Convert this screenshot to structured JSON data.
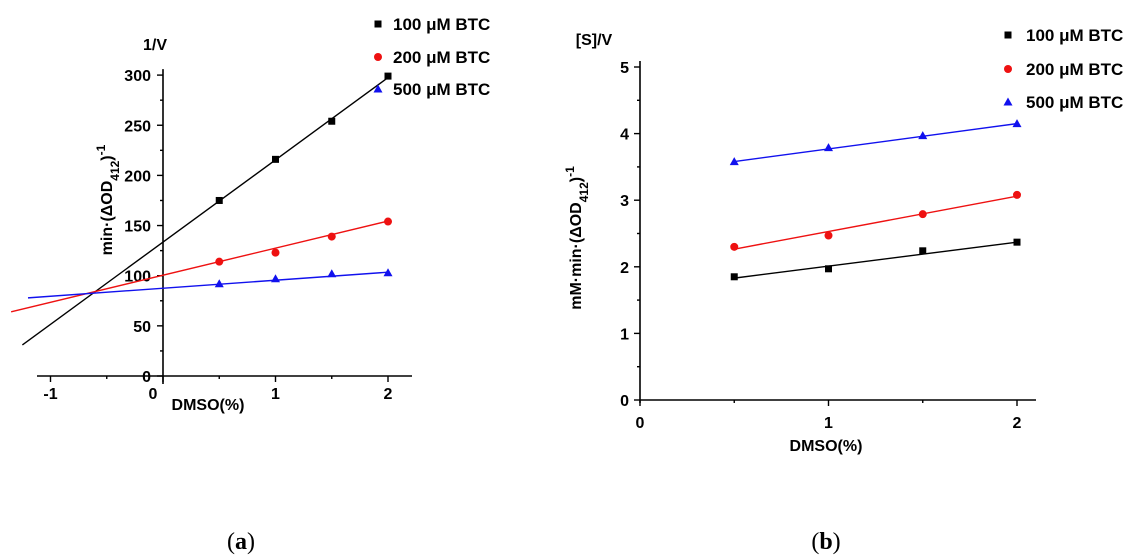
{
  "chart_data": [
    {
      "type": "line",
      "panel_label": "(a)",
      "title_above_y": "1/V",
      "ylabel": "min·(ΔOD412)-1",
      "xlabel": "DMSO(%)",
      "xlim": [
        -1.3,
        2.2
      ],
      "ylim": [
        0,
        300
      ],
      "x_ticks": [
        -1,
        0,
        1,
        2
      ],
      "y_ticks": [
        0,
        50,
        100,
        150,
        200,
        250,
        300
      ],
      "x": [
        0.5,
        1,
        1.5,
        2
      ],
      "series": [
        {
          "name": "100 μM BTC",
          "marker": "square",
          "color": "#000000",
          "values": [
            175,
            216,
            254,
            299
          ],
          "fit": {
            "slope": 82,
            "intercept": 133.5,
            "x_range": [
              -1.25,
              2.0
            ]
          }
        },
        {
          "name": "200 μM BTC",
          "marker": "circle",
          "color": "#ee1111",
          "values": [
            114,
            123,
            139,
            154
          ],
          "fit": {
            "slope": 27,
            "intercept": 100.5,
            "x_range": [
              -1.35,
              2.0
            ]
          }
        },
        {
          "name": "500 μM BTC",
          "marker": "triangle",
          "color": "#1111ee",
          "values": [
            92,
            97,
            102,
            103
          ],
          "fit": {
            "slope": 8,
            "intercept": 87.5,
            "x_range": [
              -1.2,
              2.0
            ]
          }
        }
      ]
    },
    {
      "type": "line",
      "panel_label": "(b)",
      "title_above_y": "[S]/V",
      "ylabel": "mM·min·(ΔOD412)-1",
      "xlabel": "DMSO(%)",
      "xlim": [
        0,
        2.1
      ],
      "ylim": [
        0,
        5
      ],
      "x_ticks": [
        0,
        1,
        2
      ],
      "y_ticks": [
        0,
        1,
        2,
        3,
        4,
        5
      ],
      "x": [
        0.5,
        1,
        1.5,
        2
      ],
      "series": [
        {
          "name": "100 μM BTC",
          "marker": "square",
          "color": "#000000",
          "values": [
            1.85,
            1.97,
            2.24,
            2.37
          ],
          "fit": {
            "slope": 0.36,
            "intercept": 1.65,
            "x_range": [
              0.5,
              2.0
            ]
          }
        },
        {
          "name": "200 μM BTC",
          "marker": "circle",
          "color": "#ee1111",
          "values": [
            2.3,
            2.47,
            2.79,
            3.08
          ],
          "fit": {
            "slope": 0.53,
            "intercept": 2.0,
            "x_range": [
              0.5,
              2.0
            ]
          }
        },
        {
          "name": "500 μM BTC",
          "marker": "triangle",
          "color": "#1111ee",
          "values": [
            3.58,
            3.79,
            3.97,
            4.15
          ],
          "fit": {
            "slope": 0.38,
            "intercept": 3.39,
            "x_range": [
              0.5,
              2.0
            ]
          }
        }
      ]
    }
  ]
}
